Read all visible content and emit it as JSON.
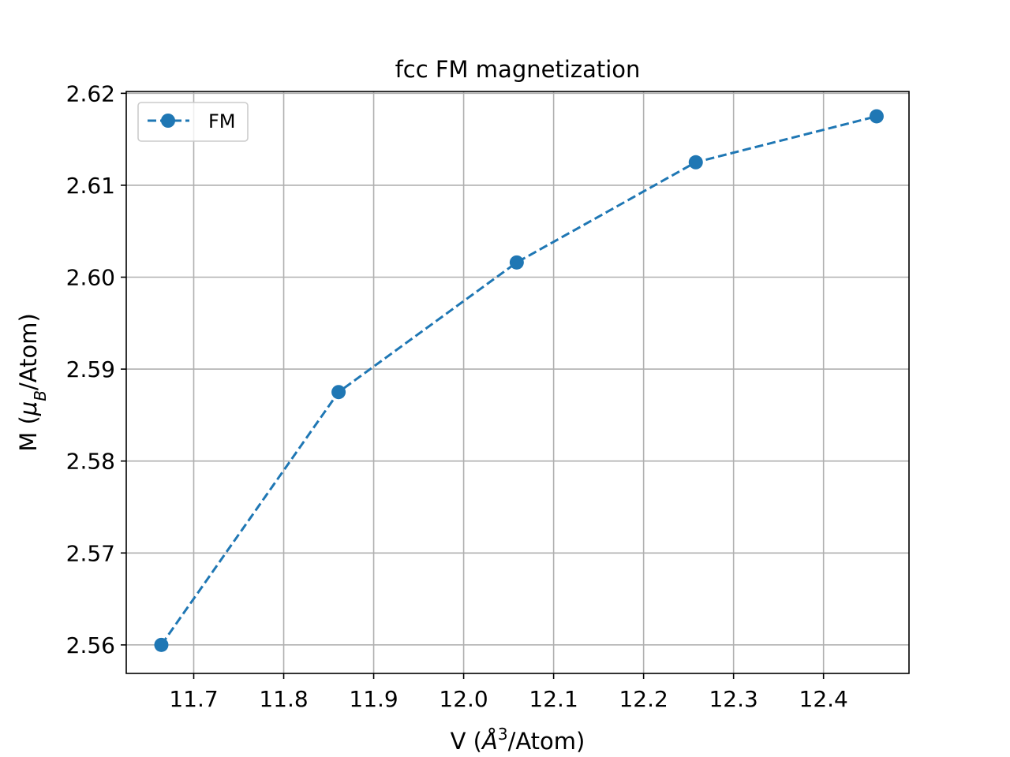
{
  "chart_data": {
    "type": "line",
    "title": "fcc FM magnetization",
    "xlabel": {
      "main": "V (",
      "italic": "Å",
      "sup": "3",
      "tail": "/Atom)"
    },
    "ylabel": {
      "main": "M (",
      "italic": "μ",
      "sub": "B",
      "tail": "/Atom)"
    },
    "xlim": [
      11.625,
      12.495
    ],
    "ylim": [
      2.5569,
      2.6202
    ],
    "xticks": [
      11.7,
      11.8,
      11.9,
      12.0,
      12.1,
      12.2,
      12.3,
      12.4
    ],
    "xtick_labels": [
      "11.7",
      "11.8",
      "11.9",
      "12.0",
      "12.1",
      "12.2",
      "12.3",
      "12.4"
    ],
    "yticks": [
      2.56,
      2.57,
      2.58,
      2.59,
      2.6,
      2.61,
      2.62
    ],
    "ytick_labels": [
      "2.56",
      "2.57",
      "2.58",
      "2.59",
      "2.60",
      "2.61",
      "2.62"
    ],
    "grid": true,
    "legend_position": "top-left",
    "series": [
      {
        "name": "FM",
        "color": "#1f77b4",
        "line_style": "dashed",
        "marker": "circle",
        "x": [
          11.664,
          11.861,
          12.059,
          12.258,
          12.459
        ],
        "y": [
          2.56,
          2.5875,
          2.6016,
          2.6125,
          2.6175
        ]
      }
    ]
  }
}
